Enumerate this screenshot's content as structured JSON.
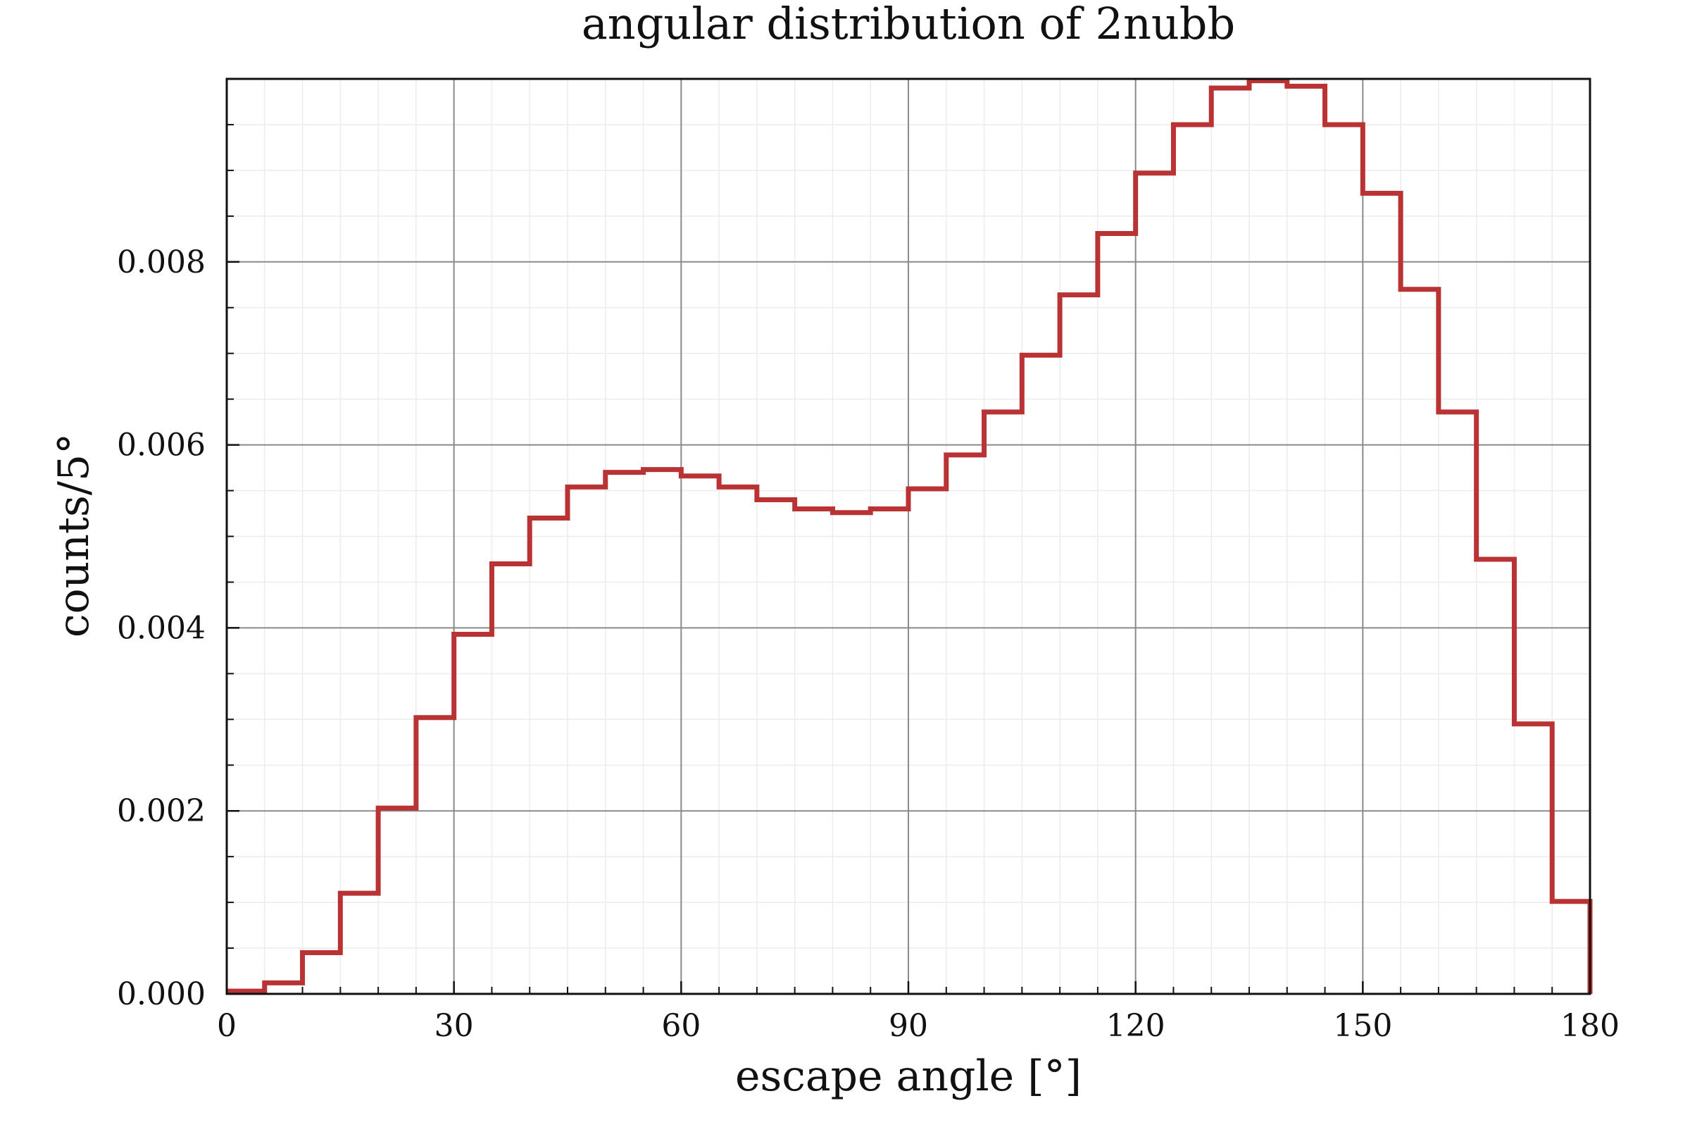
{
  "chart_data": {
    "type": "bar",
    "title": "angular distribution of 2nubb",
    "xlabel": "escape angle [°]",
    "ylabel": "counts/5°",
    "xlim": [
      0,
      180
    ],
    "ylim": [
      0,
      0.01
    ],
    "xticks": [
      0,
      30,
      60,
      90,
      120,
      150,
      180
    ],
    "xtick_labels": [
      "0",
      "30",
      "60",
      "90",
      "120",
      "150",
      "180"
    ],
    "yticks": [
      0,
      0.002,
      0.004,
      0.006,
      0.008
    ],
    "ytick_labels": [
      "0.000",
      "0.002",
      "0.004",
      "0.006",
      "0.008"
    ],
    "grid": true,
    "style": "step",
    "bin_edges": [
      0,
      5,
      10,
      15,
      20,
      25,
      30,
      35,
      40,
      45,
      50,
      55,
      60,
      65,
      70,
      75,
      80,
      85,
      90,
      95,
      100,
      105,
      110,
      115,
      120,
      125,
      130,
      135,
      140,
      145,
      150,
      155,
      160,
      165,
      170,
      175,
      180
    ],
    "values": [
      3e-05,
      0.00012,
      0.00045,
      0.0011,
      0.00203,
      0.00302,
      0.00393,
      0.0047,
      0.0052,
      0.00554,
      0.0057,
      0.00573,
      0.00566,
      0.00554,
      0.0054,
      0.0053,
      0.00526,
      0.0053,
      0.00552,
      0.00589,
      0.00636,
      0.00698,
      0.00764,
      0.00831,
      0.00897,
      0.0095,
      0.0099,
      0.00998,
      0.00992,
      0.0095,
      0.00875,
      0.0077,
      0.00636,
      0.00475,
      0.00295,
      0.00101
    ],
    "color": "#b93234"
  }
}
